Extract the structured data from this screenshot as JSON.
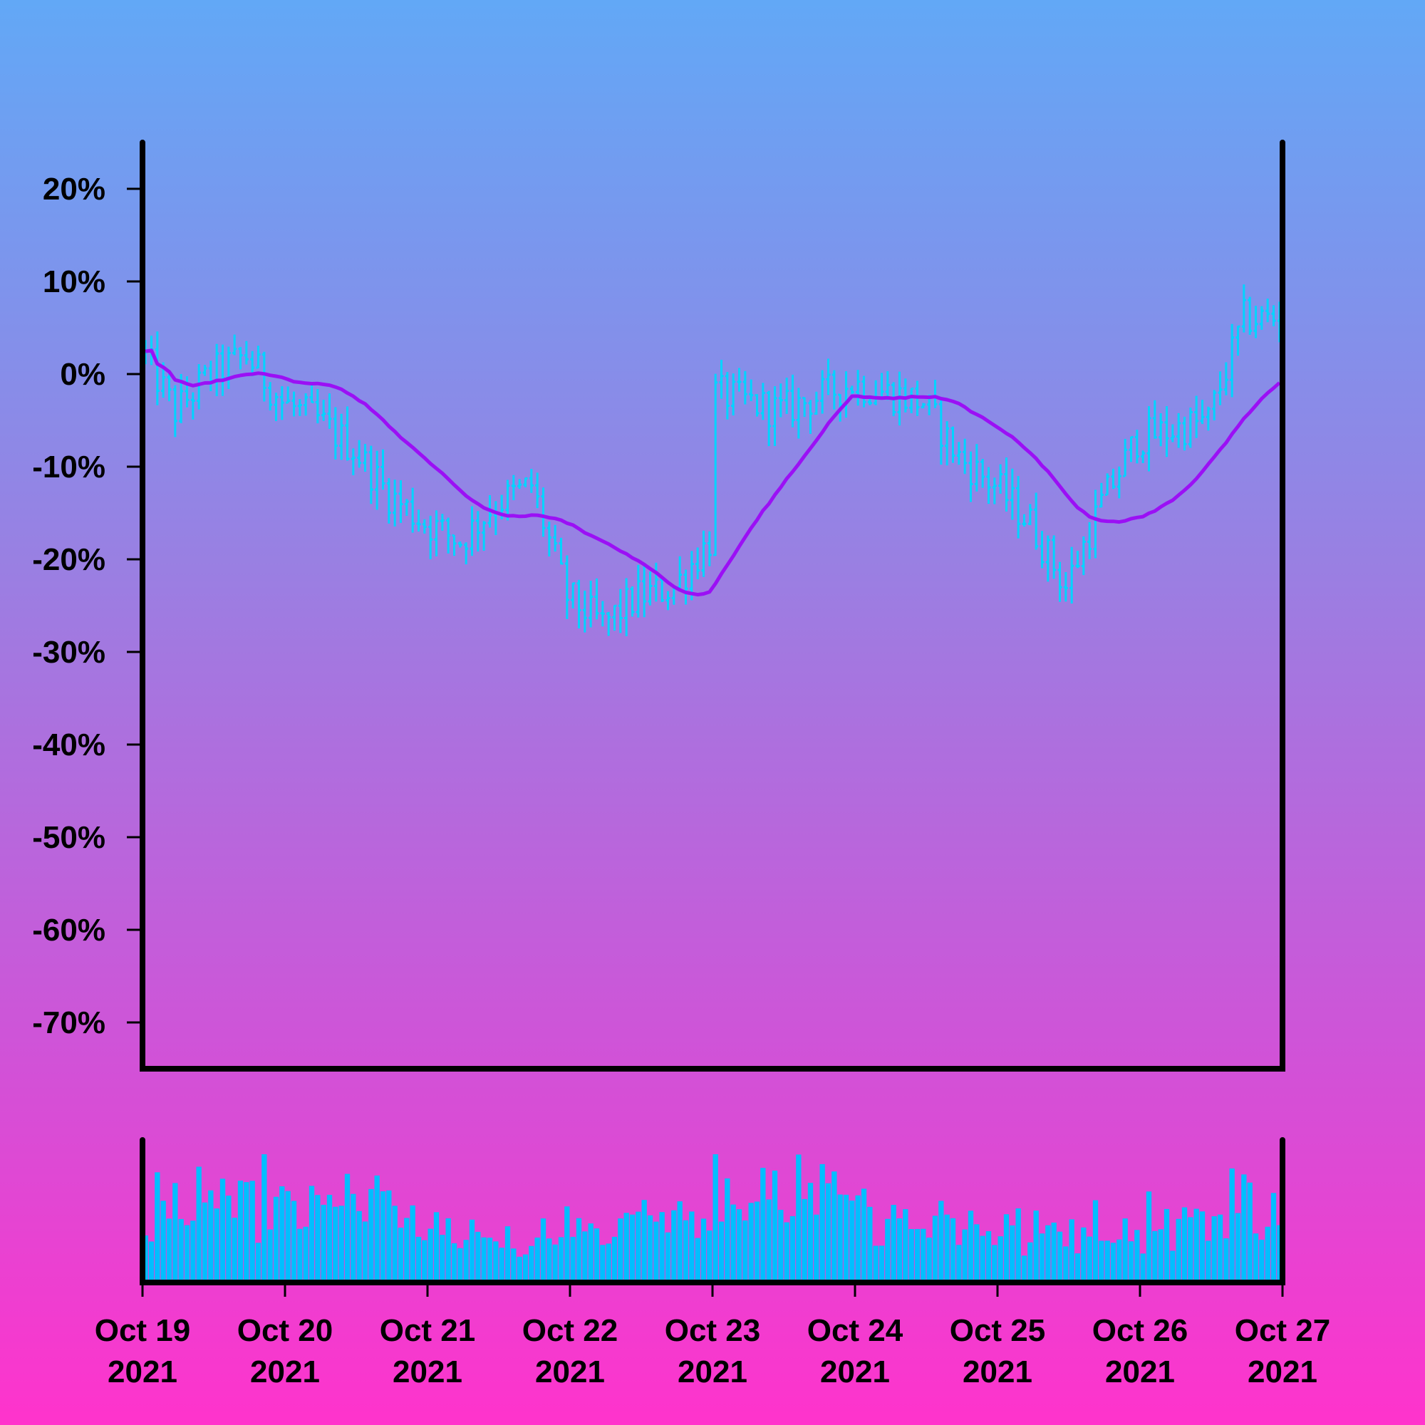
{
  "chart_data": [
    {
      "panel": "price",
      "type": "ohlc",
      "ylim": [
        -75,
        25
      ],
      "yticks": [
        20,
        10,
        0,
        -10,
        -20,
        -30,
        -40,
        -50,
        -60,
        -70
      ],
      "ytick_labels": [
        "20%",
        "10%",
        "0%",
        "-10%",
        "-20%",
        "-30%",
        "-40%",
        "-50%",
        "-60%",
        "-70%"
      ],
      "x_start": "2021-10-19",
      "x_end": "2021-10-27",
      "bar_hours": 1,
      "close_anchors": [
        [
          "2021-10-19T00:00",
          3
        ],
        [
          "2021-10-19T06:00",
          -4
        ],
        [
          "2021-10-19T12:00",
          0
        ],
        [
          "2021-10-19T18:00",
          2
        ],
        [
          "2021-10-20T00:00",
          -3
        ],
        [
          "2021-10-20T06:00",
          -5
        ],
        [
          "2021-10-20T12:00",
          -8
        ],
        [
          "2021-10-20T18:00",
          -13
        ],
        [
          "2021-10-21T00:00",
          -16
        ],
        [
          "2021-10-21T06:00",
          -18
        ],
        [
          "2021-10-21T12:00",
          -14
        ],
        [
          "2021-10-21T18:00",
          -12
        ],
        [
          "2021-10-22T00:00",
          -24
        ],
        [
          "2021-10-22T06:00",
          -27
        ],
        [
          "2021-10-22T12:00",
          -24
        ],
        [
          "2021-10-22T18:00",
          -23
        ],
        [
          "2021-10-23T00:00",
          -18
        ],
        [
          "2021-10-23T01:00",
          -2
        ],
        [
          "2021-10-23T12:00",
          -4
        ],
        [
          "2021-10-24T00:00",
          -1
        ],
        [
          "2021-10-24T12:00",
          -3
        ],
        [
          "2021-10-24T18:00",
          -9
        ],
        [
          "2021-10-25T00:00",
          -12
        ],
        [
          "2021-10-25T06:00",
          -16
        ],
        [
          "2021-10-25T12:00",
          -23
        ],
        [
          "2021-10-25T18:00",
          -14
        ],
        [
          "2021-10-26T00:00",
          -7
        ],
        [
          "2021-10-26T12:00",
          -5
        ],
        [
          "2021-10-26T18:00",
          6
        ],
        [
          "2021-10-27T00:00",
          6
        ]
      ],
      "colors": {
        "bars": "#00d4ff",
        "moving_average": "#9b10f5"
      }
    },
    {
      "panel": "volume",
      "type": "bar",
      "color": "#00bfff"
    }
  ],
  "x_axis": {
    "ticks": [
      "2021-10-19",
      "2021-10-20",
      "2021-10-21",
      "2021-10-22",
      "2021-10-23",
      "2021-10-24",
      "2021-10-25",
      "2021-10-26",
      "2021-10-27"
    ],
    "labels": [
      [
        "Oct 19",
        "2021"
      ],
      [
        "Oct 20",
        "2021"
      ],
      [
        "Oct 21",
        "2021"
      ],
      [
        "Oct 22",
        "2021"
      ],
      [
        "Oct 23",
        "2021"
      ],
      [
        "Oct 24",
        "2021"
      ],
      [
        "Oct 25",
        "2021"
      ],
      [
        "Oct 26",
        "2021"
      ],
      [
        "Oct 27",
        "2021"
      ]
    ]
  }
}
